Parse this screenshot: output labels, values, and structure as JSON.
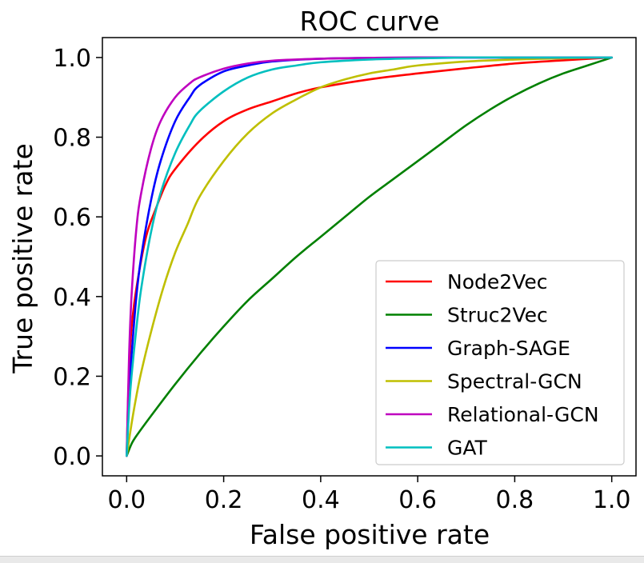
{
  "chart_data": {
    "type": "line",
    "title": "ROC curve",
    "xlabel": "False positive rate",
    "ylabel": "True positive rate",
    "xlim": [
      -0.05,
      1.05
    ],
    "ylim": [
      -0.05,
      1.05
    ],
    "xticks": [
      "0.0",
      "0.2",
      "0.4",
      "0.6",
      "0.8",
      "1.0"
    ],
    "yticks": [
      "0.0",
      "0.2",
      "0.4",
      "0.6",
      "0.8",
      "1.0"
    ],
    "grid": false,
    "legend_position": "lower-right",
    "series": [
      {
        "name": "Node2Vec",
        "color": "#ff0000",
        "x": [
          0,
          0.005,
          0.01,
          0.02,
          0.04,
          0.06,
          0.08,
          0.1,
          0.15,
          0.2,
          0.25,
          0.3,
          0.35,
          0.4,
          0.5,
          0.6,
          0.7,
          0.8,
          0.9,
          1.0
        ],
        "y": [
          0,
          0.22,
          0.32,
          0.42,
          0.55,
          0.62,
          0.68,
          0.72,
          0.79,
          0.84,
          0.87,
          0.89,
          0.91,
          0.925,
          0.945,
          0.96,
          0.973,
          0.985,
          0.993,
          1.0
        ]
      },
      {
        "name": "Struc2Vec",
        "color": "#008000",
        "x": [
          0,
          0.01,
          0.02,
          0.05,
          0.1,
          0.15,
          0.2,
          0.25,
          0.3,
          0.35,
          0.4,
          0.45,
          0.5,
          0.55,
          0.6,
          0.65,
          0.7,
          0.75,
          0.8,
          0.85,
          0.9,
          0.95,
          1.0
        ],
        "y": [
          0,
          0.03,
          0.05,
          0.1,
          0.18,
          0.255,
          0.325,
          0.39,
          0.445,
          0.5,
          0.55,
          0.6,
          0.65,
          0.695,
          0.74,
          0.785,
          0.83,
          0.87,
          0.905,
          0.935,
          0.96,
          0.98,
          1.0
        ]
      },
      {
        "name": "Graph-SAGE",
        "color": "#0000ff",
        "x": [
          0,
          0.005,
          0.01,
          0.02,
          0.03,
          0.05,
          0.07,
          0.1,
          0.13,
          0.15,
          0.2,
          0.25,
          0.3,
          0.4,
          0.5,
          0.6,
          0.7,
          0.8,
          0.9,
          1.0
        ],
        "y": [
          0,
          0.15,
          0.25,
          0.4,
          0.5,
          0.64,
          0.74,
          0.84,
          0.9,
          0.93,
          0.965,
          0.98,
          0.99,
          0.997,
          0.999,
          1.0,
          1.0,
          1.0,
          1.0,
          1.0
        ]
      },
      {
        "name": "Spectral-GCN",
        "color": "#bfbf00",
        "x": [
          0,
          0.01,
          0.02,
          0.03,
          0.05,
          0.075,
          0.1,
          0.125,
          0.15,
          0.2,
          0.25,
          0.3,
          0.35,
          0.4,
          0.45,
          0.5,
          0.55,
          0.6,
          0.7,
          0.8,
          0.9,
          1.0
        ],
        "y": [
          0,
          0.08,
          0.15,
          0.21,
          0.31,
          0.42,
          0.51,
          0.58,
          0.65,
          0.74,
          0.81,
          0.86,
          0.895,
          0.925,
          0.945,
          0.96,
          0.97,
          0.98,
          0.99,
          0.995,
          0.998,
          1.0
        ]
      },
      {
        "name": "Relational-GCN",
        "color": "#bf00bf",
        "x": [
          0,
          0.005,
          0.01,
          0.02,
          0.03,
          0.05,
          0.07,
          0.1,
          0.13,
          0.15,
          0.2,
          0.25,
          0.3,
          0.4,
          0.5,
          0.6,
          0.7,
          0.8,
          0.9,
          1.0
        ],
        "y": [
          0,
          0.25,
          0.4,
          0.57,
          0.66,
          0.77,
          0.84,
          0.9,
          0.935,
          0.95,
          0.972,
          0.985,
          0.992,
          0.997,
          0.999,
          1.0,
          1.0,
          1.0,
          1.0,
          1.0
        ]
      },
      {
        "name": "GAT",
        "color": "#00bfbf",
        "x": [
          0,
          0.005,
          0.01,
          0.02,
          0.03,
          0.05,
          0.07,
          0.1,
          0.13,
          0.15,
          0.2,
          0.25,
          0.3,
          0.35,
          0.4,
          0.5,
          0.6,
          0.7,
          0.8,
          0.9,
          1.0
        ],
        "y": [
          0,
          0.12,
          0.2,
          0.32,
          0.42,
          0.56,
          0.66,
          0.76,
          0.83,
          0.865,
          0.915,
          0.95,
          0.97,
          0.98,
          0.988,
          0.995,
          0.998,
          1.0,
          1.0,
          1.0,
          1.0
        ]
      }
    ]
  }
}
